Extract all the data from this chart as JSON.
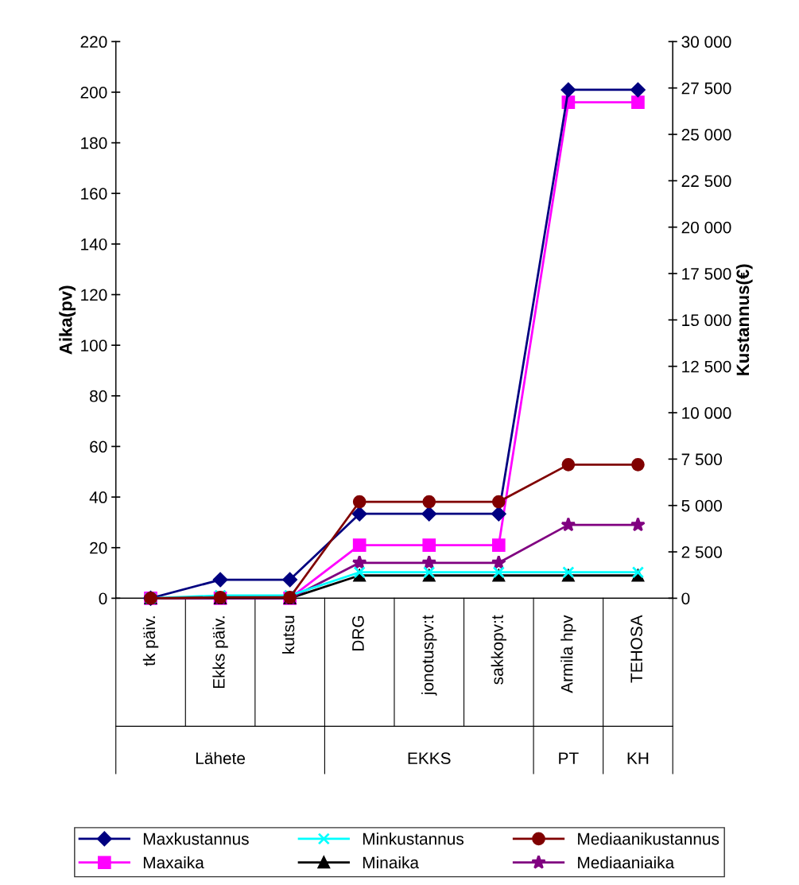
{
  "chart_data": {
    "type": "line",
    "ylabel": "Aika(pv)",
    "y2label": "Kustannus(€)",
    "categories": [
      "tk päiv.",
      "Ekks päiv.",
      "kutsu",
      "DRG",
      "jonotuspv:t",
      "sakkopv:t",
      "Armila hpv",
      "TEHOSA"
    ],
    "annotations": [
      "Lähete",
      "EKKS",
      "PT",
      "KH"
    ],
    "series": [
      {
        "name": "Maxkustannus",
        "color": "#000080",
        "marker": "diamond",
        "axis": "y2",
        "values": [
          0,
          1000,
          1000,
          4550,
          4550,
          4550,
          27400,
          27400
        ]
      },
      {
        "name": "Minkustannus",
        "color": "#00ffff",
        "marker": "cross",
        "axis": "y2",
        "values": [
          0,
          150,
          150,
          1400,
          1400,
          1400,
          1400,
          1400
        ]
      },
      {
        "name": "Mediaanikustannus",
        "color": "#800000",
        "marker": "circle",
        "axis": "y2",
        "values": [
          0,
          50,
          50,
          5200,
          5200,
          5200,
          7200,
          7200
        ]
      },
      {
        "name": "Maxaika",
        "color": "#ff00ff",
        "marker": "square",
        "values": [
          0,
          0,
          0,
          21,
          21,
          21,
          196,
          196
        ]
      },
      {
        "name": "Minaika",
        "color": "#000000",
        "marker": "triangle",
        "values": [
          0,
          0,
          0,
          9,
          9,
          9,
          9,
          9
        ]
      },
      {
        "name": "Mediaaniaika",
        "color": "#800080",
        "marker": "star",
        "values": [
          0,
          0,
          0,
          14,
          14,
          14,
          29,
          29
        ]
      }
    ],
    "ylim": [
      0,
      220
    ],
    "yticks": [
      0,
      20,
      40,
      60,
      80,
      100,
      120,
      140,
      160,
      180,
      200,
      220
    ],
    "y2lim": [
      0,
      30000
    ],
    "y2ticks": [
      0,
      {
        "value": 2500,
        "label": "2 500"
      },
      {
        "value": 5000,
        "label": "5 000"
      },
      {
        "value": 7500,
        "label": "7 500"
      },
      {
        "value": 10000,
        "label": "10 000"
      },
      {
        "value": 12500,
        "label": "12 500"
      },
      {
        "value": 15000,
        "label": "15 000"
      },
      {
        "value": 17500,
        "label": "17 500"
      },
      {
        "value": 20000,
        "label": "20 000"
      },
      {
        "value": 22500,
        "label": "22 500"
      },
      {
        "value": 25000,
        "label": "25 000"
      },
      {
        "value": 27500,
        "label": "27 500"
      },
      {
        "value": 30000,
        "label": "30 000"
      }
    ],
    "grid": false,
    "legend": "bottom",
    "line_style": "solid"
  }
}
